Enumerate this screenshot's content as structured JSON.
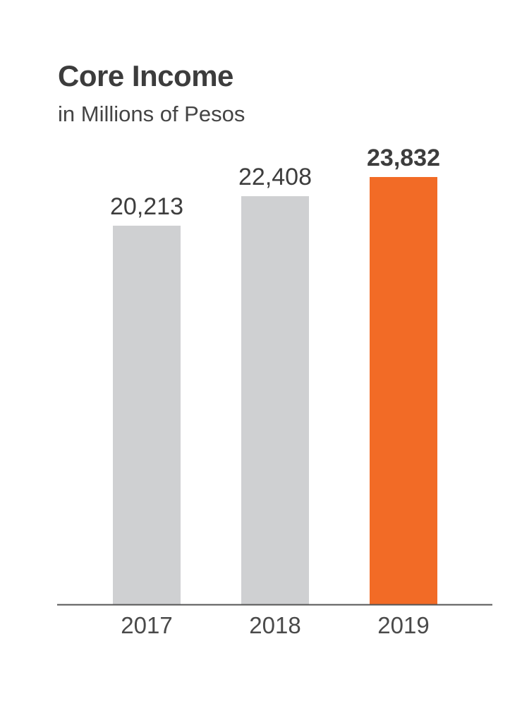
{
  "chart_data": {
    "type": "bar",
    "title": "Core Income",
    "subtitle": "in Millions of Pesos",
    "categories": [
      "2017",
      "2018",
      "2019"
    ],
    "values": [
      20213,
      22408,
      23832
    ],
    "value_labels": [
      "20,213",
      "22,408",
      "23,832"
    ],
    "highlight_index": 2,
    "colors": {
      "bar": "#cfd0d2",
      "highlight": "#f26b26",
      "axis": "#555555"
    },
    "ylim": [
      0,
      26000
    ],
    "grid": false,
    "legend": "none"
  }
}
